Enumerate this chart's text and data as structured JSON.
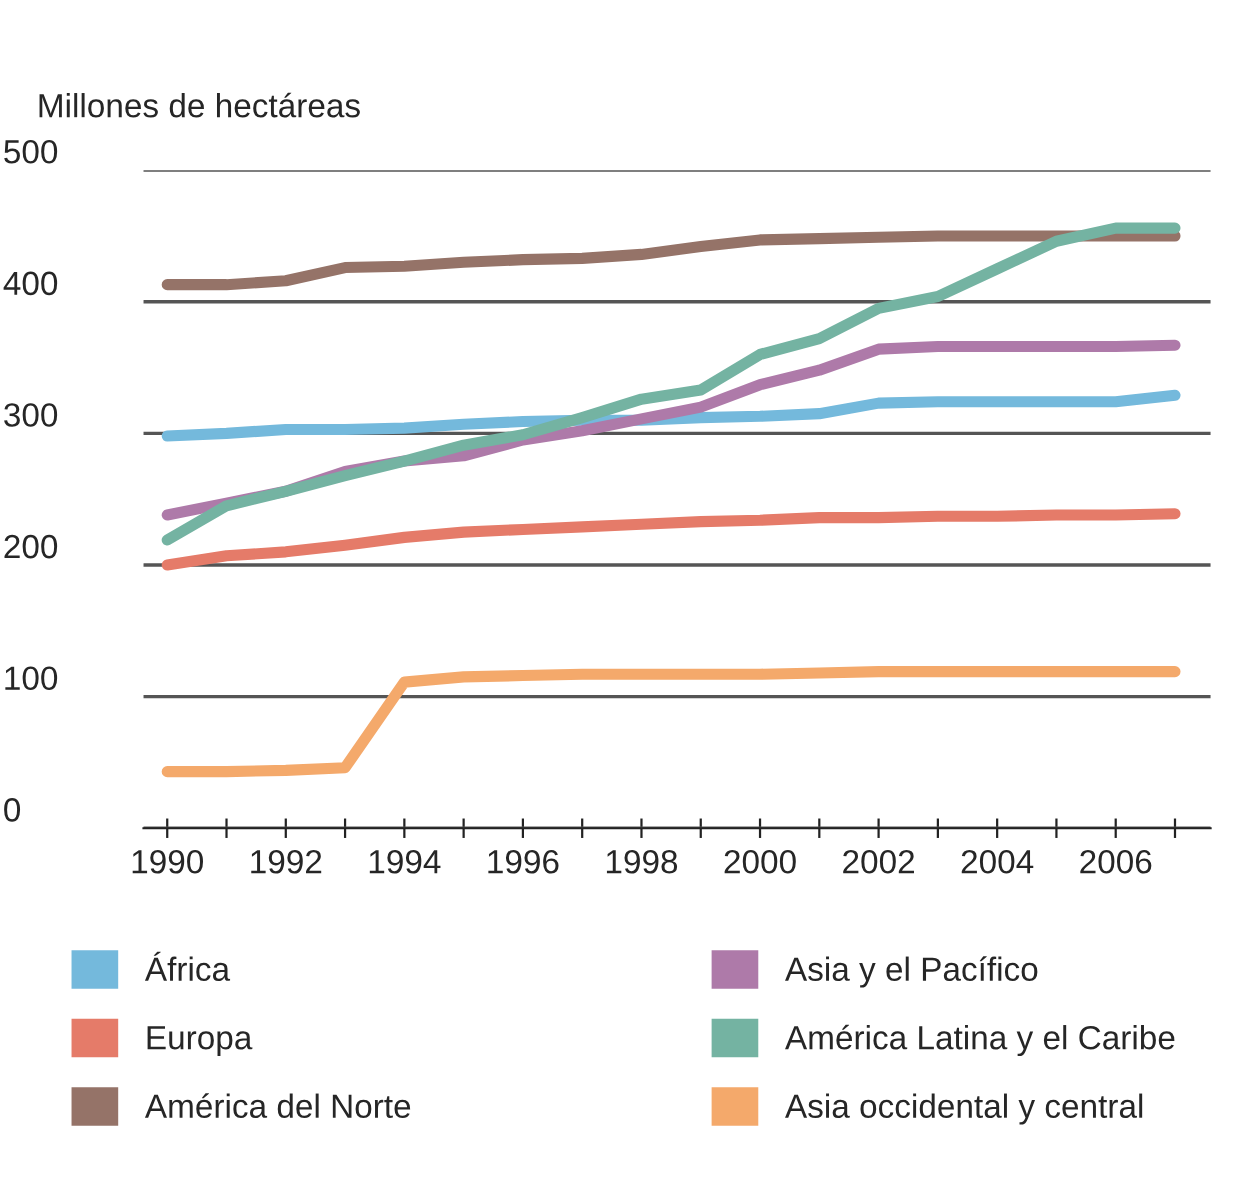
{
  "chart_data": {
    "type": "line",
    "ylabel": "Millones de hectáreas",
    "x": [
      1990,
      1991,
      1992,
      1993,
      1994,
      1995,
      1996,
      1997,
      1998,
      1999,
      2000,
      2001,
      2002,
      2003,
      2004,
      2005,
      2006,
      2007
    ],
    "series": [
      {
        "name": "África",
        "color": "#74b9dc",
        "values": [
          298,
          300,
          303,
          303,
          304,
          307,
          309,
          310,
          310,
          312,
          313,
          315,
          323,
          324,
          324,
          324,
          324,
          329
        ]
      },
      {
        "name": "Europa",
        "color": "#e57b69",
        "values": [
          200,
          207,
          210,
          215,
          221,
          225,
          227,
          229,
          231,
          233,
          234,
          236,
          236,
          237,
          237,
          238,
          238,
          239
        ]
      },
      {
        "name": "América del Norte",
        "color": "#957368",
        "values": [
          413,
          413,
          416,
          426,
          427,
          430,
          432,
          433,
          436,
          442,
          447,
          448,
          449,
          450,
          450,
          450,
          450,
          450
        ]
      },
      {
        "name": "Asia y el Pacífico",
        "color": "#ae7aa9",
        "values": [
          238,
          247,
          256,
          271,
          279,
          283,
          295,
          302,
          311,
          320,
          337,
          348,
          364,
          366,
          366,
          366,
          366,
          367
        ]
      },
      {
        "name": "América Latina y el Caribe",
        "color": "#74b3a2",
        "values": [
          219,
          245,
          256,
          268,
          279,
          291,
          299,
          312,
          326,
          333,
          360,
          372,
          395,
          404,
          425,
          446,
          456,
          456
        ]
      },
      {
        "name": "Asia occidental y central",
        "color": "#f4a96b",
        "values": [
          43,
          43,
          44,
          46,
          111,
          115,
          116,
          117,
          117,
          117,
          117,
          118,
          119,
          119,
          119,
          119,
          119,
          119
        ]
      }
    ],
    "xlim": [
      1989.6,
      2007.6
    ],
    "ylim": [
      0,
      500
    ],
    "xticks": [
      1990,
      {
        "value": 1991,
        "label": null
      },
      1992,
      {
        "value": 1993,
        "label": null
      },
      1994,
      {
        "value": 1995,
        "label": null
      },
      1996,
      {
        "value": 1997,
        "label": null
      },
      1998,
      {
        "value": 1999,
        "label": null
      },
      2000,
      {
        "value": 2001,
        "label": null
      },
      2002,
      {
        "value": 2003,
        "label": null
      },
      2004,
      {
        "value": 2005,
        "label": null
      },
      2006,
      {
        "value": 2007,
        "label": null
      }
    ],
    "yticks": [
      0,
      100,
      200,
      300,
      400,
      500
    ],
    "grid": "y",
    "legend": "bottom",
    "marker": "none",
    "line_style": "solid"
  }
}
